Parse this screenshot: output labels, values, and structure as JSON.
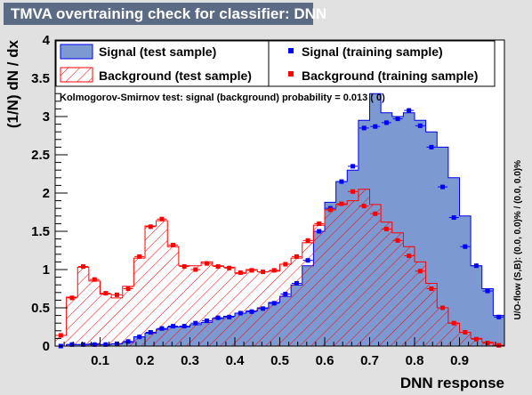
{
  "title": "TMVA overtraining check for classifier: DNN",
  "chart_data": {
    "type": "histogram",
    "xlabel": "DNN response",
    "ylabel": "(1/N) dN / dx",
    "xlim": [
      0,
      1
    ],
    "ylim": [
      0,
      4
    ],
    "x_ticks": [
      0.1,
      0.2,
      0.3,
      0.4,
      0.5,
      0.6,
      0.7,
      0.8,
      0.9
    ],
    "y_ticks": [
      0,
      0.5,
      1,
      1.5,
      2,
      2.5,
      3,
      3.5,
      4
    ],
    "n_bins": 40,
    "colors": {
      "signal_fill": "#7d99d1",
      "signal_line": "#0000ee",
      "background_hatch": "#ff0000",
      "signal_marker": "#0000ff",
      "background_marker": "#ff0000"
    },
    "legend": {
      "signal_test": "Signal (test sample)",
      "signal_train": "Signal (training sample)",
      "background_test": "Background (test sample)",
      "background_train": "Background (training sample)"
    },
    "ks_text": "Kolmogorov-Smirnov test: signal (background) probability = 0.013 (    0)",
    "overflow_text": "U/O-flow (S,B): (0.0, 0.0)% / (0.0, 0.0)%",
    "series": [
      {
        "name": "Signal (test sample)",
        "values": [
          0.0,
          0.02,
          0.02,
          0.03,
          0.02,
          0.03,
          0.05,
          0.12,
          0.17,
          0.22,
          0.25,
          0.25,
          0.28,
          0.31,
          0.36,
          0.39,
          0.43,
          0.46,
          0.5,
          0.57,
          0.65,
          0.8,
          1.05,
          1.5,
          1.88,
          2.15,
          2.3,
          2.95,
          3.3,
          3.05,
          3.0,
          3.05,
          2.95,
          2.8,
          2.6,
          2.2,
          1.7,
          1.05,
          0.75,
          0.4
        ]
      },
      {
        "name": "Background (test sample)",
        "values": [
          0.14,
          0.64,
          1.03,
          0.85,
          0.68,
          0.63,
          0.78,
          1.15,
          1.57,
          1.64,
          1.3,
          1.05,
          1.05,
          1.1,
          1.05,
          1.03,
          0.95,
          1.0,
          0.97,
          0.98,
          1.07,
          1.15,
          1.35,
          1.58,
          1.78,
          1.85,
          1.9,
          2.05,
          1.85,
          1.62,
          1.48,
          1.3,
          1.1,
          0.82,
          0.5,
          0.3,
          0.18,
          0.1,
          0.05,
          0.01
        ]
      },
      {
        "name": "Signal (training sample)",
        "values": [
          0.0,
          0.02,
          0.02,
          0.02,
          0.02,
          0.03,
          0.06,
          0.12,
          0.18,
          0.23,
          0.26,
          0.26,
          0.3,
          0.33,
          0.37,
          0.38,
          0.43,
          0.45,
          0.49,
          0.56,
          0.68,
          0.82,
          1.12,
          1.5,
          1.8,
          2.15,
          2.35,
          2.85,
          2.87,
          2.92,
          2.97,
          3.08,
          2.88,
          2.6,
          2.08,
          1.68,
          1.3,
          1.05,
          0.72,
          0.38
        ]
      },
      {
        "name": "Background (training sample)",
        "values": [
          0.14,
          0.63,
          1.04,
          0.87,
          0.69,
          0.67,
          0.75,
          1.17,
          1.56,
          1.66,
          1.32,
          1.04,
          1.0,
          1.08,
          1.04,
          1.02,
          0.96,
          0.99,
          0.97,
          0.99,
          1.07,
          1.17,
          1.38,
          1.6,
          1.78,
          1.86,
          2.02,
          1.83,
          1.73,
          1.53,
          1.38,
          1.18,
          0.98,
          0.75,
          0.5,
          0.3,
          0.18,
          0.09,
          0.04,
          0.01
        ]
      }
    ]
  }
}
